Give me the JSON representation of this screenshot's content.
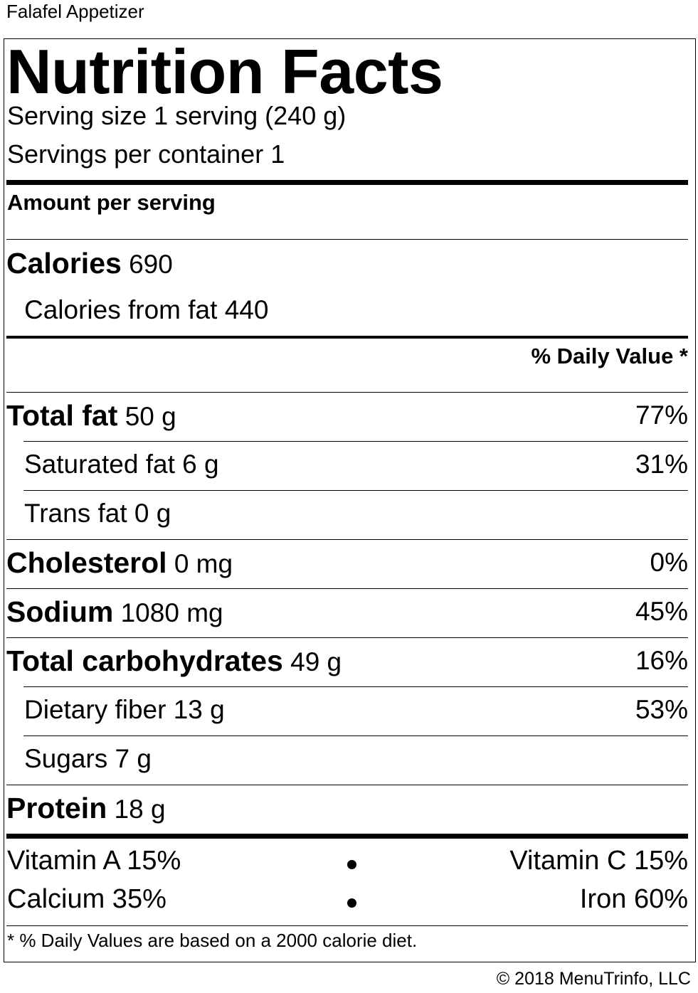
{
  "product_name": "Falafel Appetizer",
  "title": "Nutrition Facts",
  "serving_size": "Serving size 1 serving (240 g)",
  "servings_per_container": "Servings per container 1",
  "amount_per_serving": "Amount per serving",
  "calories": {
    "label": "Calories",
    "value": "690"
  },
  "calories_from_fat": "Calories from fat 440",
  "daily_value_header": "% Daily Value *",
  "nutrients": [
    {
      "name": "Total fat",
      "amount": "50 g",
      "dv": "77%"
    },
    {
      "name": "Saturated fat",
      "amount": "6 g",
      "dv": "31%"
    },
    {
      "name": "Trans fat",
      "amount": "0 g",
      "dv": ""
    },
    {
      "name": "Cholesterol",
      "amount": "0 mg",
      "dv": "0%"
    },
    {
      "name": "Sodium",
      "amount": "1080 mg",
      "dv": "45%"
    },
    {
      "name": "Total carbohydrates",
      "amount": "49 g",
      "dv": "16%"
    },
    {
      "name": "Dietary fiber",
      "amount": "13 g",
      "dv": "53%"
    },
    {
      "name": "Sugars",
      "amount": "7 g",
      "dv": ""
    },
    {
      "name": "Protein",
      "amount": "18 g",
      "dv": ""
    }
  ],
  "vitamins": [
    {
      "left": "Vitamin A 15%",
      "right": "Vitamin C 15%"
    },
    {
      "left": "Calcium 35%",
      "right": "Iron 60%"
    }
  ],
  "footnote": "* % Daily Values are based on a 2000 calorie diet.",
  "copyright": "© 2018 MenuTrinfo, LLC"
}
